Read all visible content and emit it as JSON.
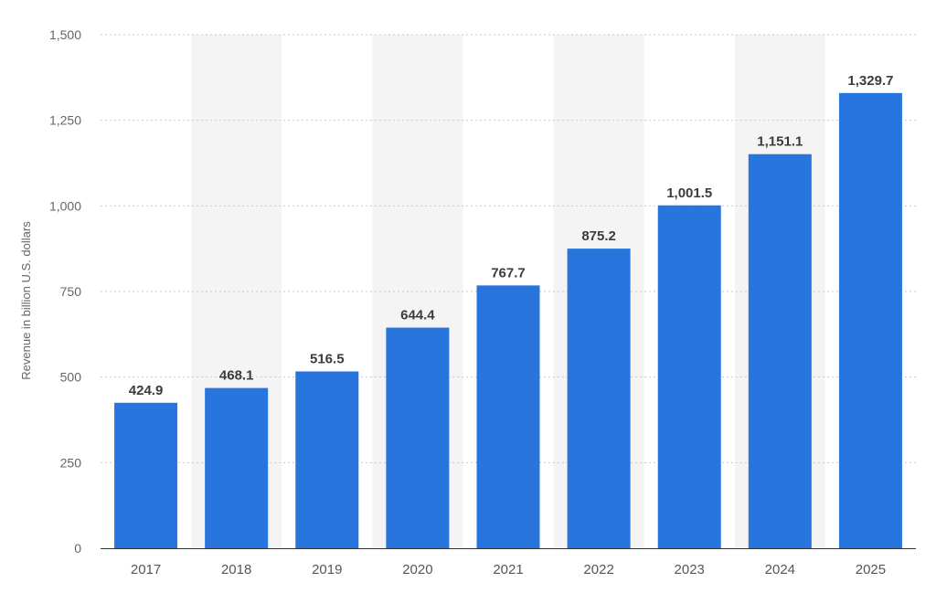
{
  "chart_data": {
    "type": "bar",
    "title": "",
    "xlabel": "",
    "ylabel": "Revenue in billion U.S. dollars",
    "categories": [
      "2017",
      "2018",
      "2019",
      "2020",
      "2021",
      "2022",
      "2023",
      "2024",
      "2025"
    ],
    "values": [
      424.9,
      468.1,
      516.5,
      644.4,
      767.7,
      875.2,
      1001.5,
      1151.1,
      1329.7
    ],
    "value_labels": [
      "424.9",
      "468.1",
      "516.5",
      "644.4",
      "767.7",
      "875.2",
      "1,001.5",
      "1,151.1",
      "1,329.7"
    ],
    "ylim": [
      0,
      1500
    ],
    "yticks": [
      0,
      250,
      500,
      750,
      1000,
      1250,
      1500
    ],
    "ytick_labels": [
      "0",
      "250",
      "500",
      "750",
      "1,000",
      "1,250",
      "1,500"
    ],
    "grid": true,
    "legend": "none",
    "colors": {
      "bar": "#2876dd",
      "band": "#f4f4f4",
      "grid": "#c9c9c9"
    }
  }
}
